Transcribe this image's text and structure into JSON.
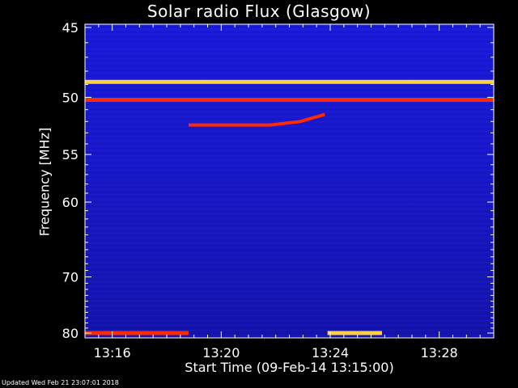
{
  "chart_data": {
    "type": "heatmap",
    "title": "Solar radio Flux (Glasgow)",
    "ylabel": "Frequency [MHz]",
    "xlabel": "Start Time (09-Feb-14 13:15:00)",
    "x_start": "13:15:00",
    "x_end": "13:30:00",
    "x_range_minutes": [
      0,
      15
    ],
    "ylim": [
      45,
      80
    ],
    "y_ticks": [
      45,
      50,
      55,
      60,
      70,
      80
    ],
    "y_tick_labels": [
      "45",
      "50",
      "55",
      "60",
      "70",
      "80"
    ],
    "x_ticks": [
      1,
      5,
      9,
      13
    ],
    "x_tick_labels": [
      "13:16",
      "13:20",
      "13:24",
      "13:28"
    ],
    "colors": {
      "background": "#1818c8",
      "hot": "#ff2a00",
      "warm": "#ffd040"
    },
    "features": [
      {
        "kind": "band",
        "freq_mhz": 48.8,
        "minute_start": 0,
        "minute_end": 15,
        "color": "warm"
      },
      {
        "kind": "band",
        "freq_mhz": 50.2,
        "minute_start": 0,
        "minute_end": 15,
        "color": "hot"
      },
      {
        "kind": "drift",
        "freqs_mhz": [
          52.3,
          52.3,
          52.0,
          51.4
        ],
        "minutes": [
          3.8,
          6.8,
          7.9,
          8.8
        ],
        "color": "hot"
      },
      {
        "kind": "band",
        "freq_mhz": 80.0,
        "minute_start": 0,
        "minute_end": 3.8,
        "color": "hot"
      },
      {
        "kind": "band",
        "freq_mhz": 80.0,
        "minute_start": 8.9,
        "minute_end": 10.9,
        "color": "warm"
      }
    ]
  },
  "footer": {
    "text": "Updated Wed Feb 21 23:07:01 2018"
  }
}
